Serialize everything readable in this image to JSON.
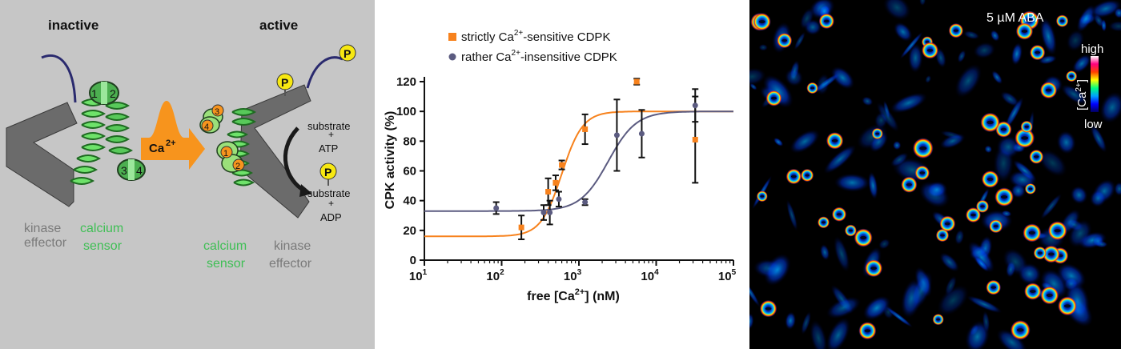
{
  "diagram": {
    "inactive_label": "inactive",
    "active_label": "active",
    "phospho_label": "P",
    "ca_label": "Ca",
    "ca_superscript": "2+",
    "ef_hands": [
      "1",
      "2",
      "3",
      "4"
    ],
    "substrate_top": "substrate",
    "plus_top": "+",
    "atp": "ATP",
    "substrate_bottom": "substrate",
    "plus_bottom": "+",
    "adp": "ADP",
    "kinase_left": [
      "kinase",
      "effector"
    ],
    "sensor_left": [
      "calcium",
      "sensor"
    ],
    "sensor_right": [
      "calcium",
      "sensor"
    ],
    "kinase_right": [
      "kinase",
      "effector"
    ],
    "colors": {
      "background": "#c6c6c6",
      "kinase": "#6b6b6b",
      "sensor": "#5fd35a",
      "arrow": "#f7941d",
      "phospho": "#f7e812",
      "linker": "#2a2a6e"
    }
  },
  "chart_data": {
    "type": "scatter",
    "xlabel_main": "free [Ca",
    "xlabel_sup": "2+",
    "xlabel_end": "] (nM)",
    "ylabel": "CPK activity (%)",
    "xscale": "log",
    "xlim": [
      10,
      100000
    ],
    "ylim": [
      0,
      120
    ],
    "yticks": [
      "0",
      "20",
      "40",
      "60",
      "80",
      "100",
      "120"
    ],
    "xtick_base": "10",
    "xtick_exps": [
      "1",
      "2",
      "3",
      "4",
      "5"
    ],
    "legend_position": "top",
    "series": [
      {
        "name_main": "strictly Ca",
        "name_sup": "2+",
        "name_end": "-sensitive CDPK",
        "color": "#f7821d",
        "marker": "square",
        "points": [
          {
            "x": 180,
            "y": 22,
            "err": 8
          },
          {
            "x": 400,
            "y": 46,
            "err": 9
          },
          {
            "x": 500,
            "y": 52,
            "err": 5
          },
          {
            "x": 600,
            "y": 64,
            "err": 3
          },
          {
            "x": 1200,
            "y": 88,
            "err": 10
          },
          {
            "x": 5600,
            "y": 120,
            "err": 2
          },
          {
            "x": 32000,
            "y": 81,
            "err": 29
          }
        ],
        "fit": {
          "bottom": 16,
          "top": 100,
          "ec50": 600,
          "hill": 3.2
        }
      },
      {
        "name_main": "rather Ca",
        "name_sup": "2+",
        "name_end": "-insensitive CDPK",
        "color": "#5b5b80",
        "marker": "circle",
        "points": [
          {
            "x": 85,
            "y": 35,
            "err": 4
          },
          {
            "x": 350,
            "y": 32,
            "err": 5
          },
          {
            "x": 420,
            "y": 32,
            "err": 8
          },
          {
            "x": 550,
            "y": 41,
            "err": 5
          },
          {
            "x": 1200,
            "y": 39,
            "err": 2
          },
          {
            "x": 3100,
            "y": 84,
            "err": 24
          },
          {
            "x": 6500,
            "y": 85,
            "err": 16
          },
          {
            "x": 32000,
            "y": 104,
            "err": 11
          }
        ],
        "fit": {
          "bottom": 33,
          "top": 100,
          "ec50": 2400,
          "hill": 2.4
        }
      }
    ]
  },
  "image_panel": {
    "treatment_label": "5 µM ABA",
    "colorbar_high": "high",
    "colorbar_low": "low",
    "colorbar_label_main": "[Ca",
    "colorbar_label_sup": "2+",
    "colorbar_label_end": "]",
    "colormap": [
      "#000060",
      "#0000ff",
      "#00a0ff",
      "#00ff80",
      "#ffff00",
      "#ff4000",
      "#ff0080",
      "#ffffff"
    ]
  }
}
